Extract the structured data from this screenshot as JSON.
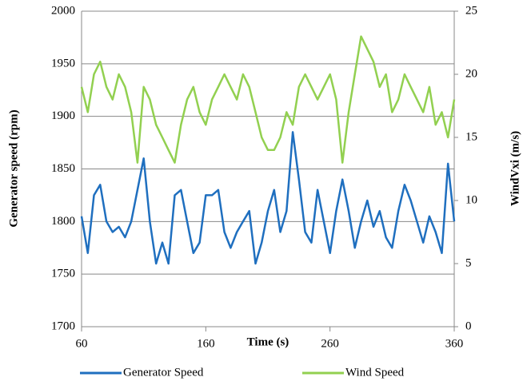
{
  "chart_data": {
    "type": "line",
    "x_label": "Time (s)",
    "y_label": "Generator speed (rpm)",
    "y2_label": "WindVxi (m/s)",
    "x": [
      60,
      65,
      70,
      75,
      80,
      85,
      90,
      95,
      100,
      105,
      110,
      115,
      120,
      125,
      130,
      135,
      140,
      145,
      150,
      155,
      160,
      165,
      170,
      175,
      180,
      185,
      190,
      195,
      200,
      205,
      210,
      215,
      220,
      225,
      230,
      235,
      240,
      245,
      250,
      255,
      260,
      265,
      270,
      275,
      280,
      285,
      290,
      295,
      300,
      305,
      310,
      315,
      320,
      325,
      330,
      335,
      340,
      345,
      350,
      355,
      360
    ],
    "series": [
      {
        "name": "Generator Speed",
        "color": "#1f6fbf",
        "values": [
          1805,
          1770,
          1825,
          1835,
          1800,
          1790,
          1795,
          1785,
          1800,
          1830,
          1860,
          1800,
          1760,
          1780,
          1760,
          1825,
          1830,
          1800,
          1770,
          1780,
          1825,
          1825,
          1830,
          1790,
          1775,
          1790,
          1800,
          1810,
          1760,
          1780,
          1810,
          1830,
          1790,
          1810,
          1885,
          1840,
          1790,
          1780,
          1830,
          1800,
          1770,
          1810,
          1840,
          1810,
          1775,
          1800,
          1820,
          1795,
          1810,
          1785,
          1775,
          1810,
          1835,
          1820,
          1800,
          1780,
          1805,
          1790,
          1770,
          1855,
          1800
        ]
      },
      {
        "name": "Wind Speed",
        "color": "#92d050",
        "axis": "y2",
        "values": [
          19,
          17,
          20,
          21,
          19,
          18,
          20,
          19,
          17,
          13,
          19,
          18,
          16,
          15,
          14,
          13,
          16,
          18,
          19,
          17,
          16,
          18,
          19,
          20,
          19,
          18,
          20,
          19,
          17,
          15,
          14,
          14,
          15,
          17,
          16,
          19,
          20,
          19,
          18,
          19,
          20,
          18,
          13,
          17,
          20,
          23,
          22,
          21,
          19,
          20,
          17,
          18,
          20,
          19,
          18,
          17,
          19,
          16,
          17,
          15,
          18
        ]
      }
    ],
    "xlim": [
      60,
      360
    ],
    "xticks": [
      60,
      160,
      260,
      360
    ],
    "ylim": [
      1700,
      2000
    ],
    "yticks": [
      1700,
      1750,
      1800,
      1850,
      1900,
      1950,
      2000
    ],
    "y2lim": [
      0,
      25
    ],
    "y2ticks": [
      0,
      5,
      10,
      15,
      20,
      25
    ],
    "grid": true,
    "legend": "bottom"
  }
}
